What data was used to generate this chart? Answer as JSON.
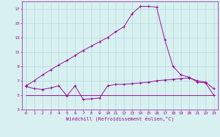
{
  "xlabel": "Windchill (Refroidissement éolien,°C)",
  "bg_color": "#d8f0f0",
  "grid_color": "#b0d8d8",
  "line_color": "#990099",
  "x": [
    0,
    1,
    2,
    3,
    4,
    5,
    6,
    7,
    8,
    9,
    10,
    11,
    12,
    13,
    14,
    15,
    16,
    17,
    18,
    19,
    20,
    21,
    22,
    23
  ],
  "line1": [
    6.3,
    7.0,
    7.8,
    8.5,
    9.2,
    9.8,
    10.5,
    11.2,
    11.8,
    12.4,
    13.0,
    13.8,
    14.5,
    16.3,
    17.3,
    17.3,
    17.2,
    12.7,
    9.0,
    7.8,
    7.5,
    6.8,
    6.7,
    5.0
  ],
  "line2": [
    6.2,
    5.9,
    5.8,
    6.0,
    6.3,
    4.9,
    6.3,
    4.4,
    4.5,
    4.6,
    6.3,
    6.5,
    6.5,
    6.6,
    6.7,
    6.8,
    7.0,
    7.1,
    7.2,
    7.3,
    7.4,
    7.0,
    6.8,
    5.9
  ],
  "line3": [
    5.0,
    5.0,
    5.0,
    5.0,
    5.0,
    5.0,
    5.0,
    5.0,
    5.0,
    5.0,
    5.0,
    5.0,
    5.0,
    5.0,
    5.0,
    5.0,
    5.0,
    5.0,
    5.0,
    5.0,
    5.0,
    5.0,
    5.0,
    5.0
  ],
  "xlim": [
    -0.5,
    23.5
  ],
  "ylim": [
    3,
    18
  ],
  "yticks": [
    3,
    5,
    7,
    9,
    11,
    13,
    15,
    17
  ],
  "xticks": [
    0,
    1,
    2,
    3,
    4,
    5,
    6,
    7,
    8,
    9,
    10,
    11,
    12,
    13,
    14,
    15,
    16,
    17,
    18,
    19,
    20,
    21,
    22,
    23
  ],
  "figsize": [
    3.2,
    2.0
  ],
  "dpi": 100
}
